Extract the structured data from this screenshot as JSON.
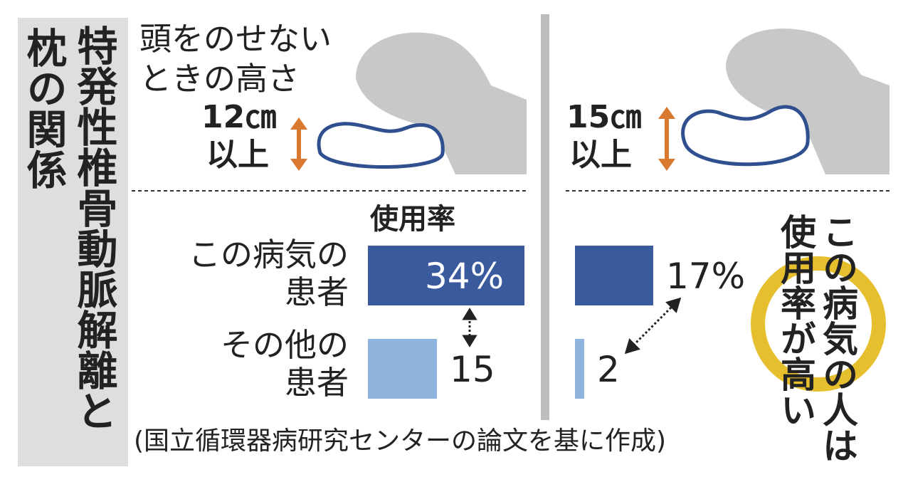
{
  "title": [
    "特発性椎骨動脈解離と",
    "枕の関係"
  ],
  "header_note": [
    "頭をのせない",
    "ときの高さ"
  ],
  "column_label": "使用率",
  "row_labels": [
    [
      "この病気の",
      "患者"
    ],
    [
      "その他の",
      "患者"
    ]
  ],
  "panels": [
    {
      "height_label": [
        "12㎝",
        "以上"
      ],
      "values": [
        34,
        15
      ],
      "value_labels": [
        "34%",
        "15"
      ]
    },
    {
      "height_label": [
        "15㎝",
        "以上"
      ],
      "values": [
        17,
        2
      ],
      "value_labels": [
        "17%",
        "2"
      ]
    }
  ],
  "callout": [
    "この病気の人は",
    "使用率が高い"
  ],
  "source": "(国立循環器病研究センターの論文を基に作成)"
}
